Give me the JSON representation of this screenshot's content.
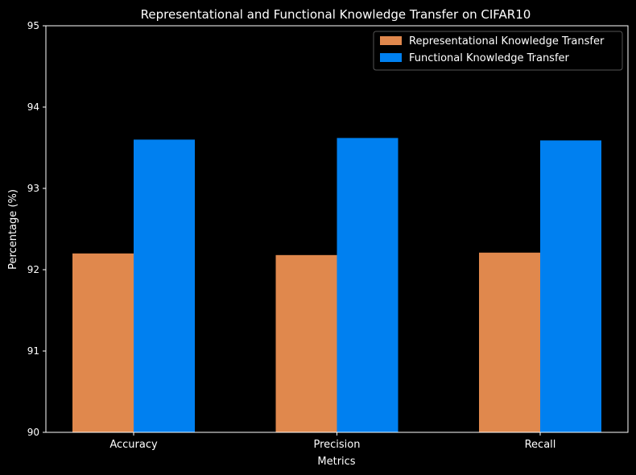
{
  "chart_data": {
    "type": "bar",
    "title": "Representational and Functional Knowledge Transfer on CIFAR10",
    "xlabel": "Metrics",
    "ylabel": "Percentage (%)",
    "categories": [
      "Accuracy",
      "Precision",
      "Recall"
    ],
    "ylim": [
      90,
      95
    ],
    "yticks": [
      "90",
      "91",
      "92",
      "93",
      "94",
      "95"
    ],
    "series": [
      {
        "name": "Representational Knowledge Transfer",
        "color": "#E0884D",
        "values": [
          92.2,
          92.18,
          92.21
        ]
      },
      {
        "name": "Functional Knowledge Transfer",
        "color": "#0080F0",
        "values": [
          93.6,
          93.62,
          93.59
        ]
      }
    ],
    "legend_position": "top-right",
    "grid": false,
    "background": "#000000",
    "axis_color": "#ffffff"
  }
}
